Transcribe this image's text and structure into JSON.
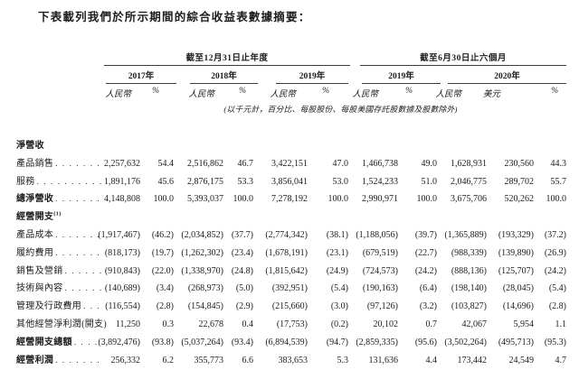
{
  "title": "下表載列我們於所示期間的綜合收益表數據摘要：",
  "table": {
    "group_headers": [
      {
        "label": "截至12月31日止年度"
      },
      {
        "label": "截至6月30日止六個月"
      }
    ],
    "year_headers": [
      {
        "label": "2017年"
      },
      {
        "label": "2018年"
      },
      {
        "label": "2019年"
      },
      {
        "label": "2019年"
      },
      {
        "label": "2020年"
      }
    ],
    "currency_headers": [
      "人民幣",
      "%",
      "人民幣",
      "%",
      "人民幣",
      "%",
      "人民幣",
      "%",
      "人民幣",
      "美元",
      "%"
    ],
    "note": "(以千元計，百分比、每股股份、每股美國存託股數據及股數除外)",
    "rows": [
      {
        "label": "淨營收",
        "bold": true,
        "leaders": false,
        "values": []
      },
      {
        "label": "產品銷售",
        "bold": false,
        "leaders": true,
        "values": [
          "2,257,632",
          "54.4",
          "2,516,862",
          "46.7",
          "3,422,151",
          "47.0",
          "1,466,738",
          "49.0",
          "1,628,931",
          "230,560",
          "44.3"
        ]
      },
      {
        "label": "服務",
        "bold": false,
        "leaders": true,
        "values": [
          "1,891,176",
          "45.6",
          "2,876,175",
          "53.3",
          "3,856,041",
          "53.0",
          "1,524,233",
          "51.0",
          "2,046,775",
          "289,702",
          "55.7"
        ]
      },
      {
        "label": "總淨營收",
        "bold": true,
        "leaders": true,
        "values": [
          "4,148,808",
          "100.0",
          "5,393,037",
          "100.0",
          "7,278,192",
          "100.0",
          "2,990,971",
          "100.0",
          "3,675,706",
          "520,262",
          "100.0"
        ]
      },
      {
        "label": "經營開支",
        "sup": "(1)",
        "bold": true,
        "leaders": false,
        "values": []
      },
      {
        "label": "產品成本",
        "bold": false,
        "leaders": true,
        "values": [
          "(1,917,467)",
          "(46.2)",
          "(2,034,852)",
          "(37.7)",
          "(2,774,342)",
          "(38.1)",
          "(1,188,056)",
          "(39.7)",
          "(1,365,889)",
          "(193,329)",
          "(37.2)"
        ]
      },
      {
        "label": "履約費用",
        "bold": false,
        "leaders": true,
        "values": [
          "(818,173)",
          "(19.7)",
          "(1,262,302)",
          "(23.4)",
          "(1,678,191)",
          "(23.1)",
          "(679,519)",
          "(22.7)",
          "(988,339)",
          "(139,890)",
          "(26.9)"
        ]
      },
      {
        "label": "銷售及營銷",
        "bold": false,
        "leaders": true,
        "values": [
          "(910,843)",
          "(22.0)",
          "(1,338,970)",
          "(24.8)",
          "(1,815,642)",
          "(24.9)",
          "(724,573)",
          "(24.2)",
          "(888,136)",
          "(125,707)",
          "(24.2)"
        ]
      },
      {
        "label": "技術與內容",
        "bold": false,
        "leaders": true,
        "values": [
          "(140,689)",
          "(3.4)",
          "(268,973)",
          "(5.0)",
          "(392,951)",
          "(5.4)",
          "(190,163)",
          "(6.4)",
          "(198,140)",
          "(28,045)",
          "(5.4)"
        ]
      },
      {
        "label": "管理及行政費用",
        "bold": false,
        "leaders": true,
        "values": [
          "(116,554)",
          "(2.8)",
          "(154,845)",
          "(2.9)",
          "(215,660)",
          "(3.0)",
          "(97,126)",
          "(3.2)",
          "(103,827)",
          "(14,696)",
          "(2.8)"
        ]
      },
      {
        "label": "其他經營淨利潤(開支)",
        "bold": false,
        "leaders": true,
        "values": [
          "11,250",
          "0.3",
          "22,678",
          "0.4",
          "(17,753)",
          "(0.2)",
          "20,102",
          "0.7",
          "42,067",
          "5,954",
          "1.1"
        ]
      },
      {
        "label": "經營開支總額",
        "bold": true,
        "leaders": true,
        "values": [
          "(3,892,476)",
          "(93.8)",
          "(5,037,264)",
          "(93.4)",
          "(6,894,539)",
          "(94.7)",
          "(2,859,335)",
          "(95.6)",
          "(3,502,264)",
          "(495,713)",
          "(95.3)"
        ]
      },
      {
        "label": "經營利潤",
        "bold": true,
        "leaders": true,
        "values": [
          "256,332",
          "6.2",
          "355,773",
          "6.6",
          "383,653",
          "5.3",
          "131,636",
          "4.4",
          "173,442",
          "24,549",
          "4.7"
        ]
      }
    ]
  }
}
